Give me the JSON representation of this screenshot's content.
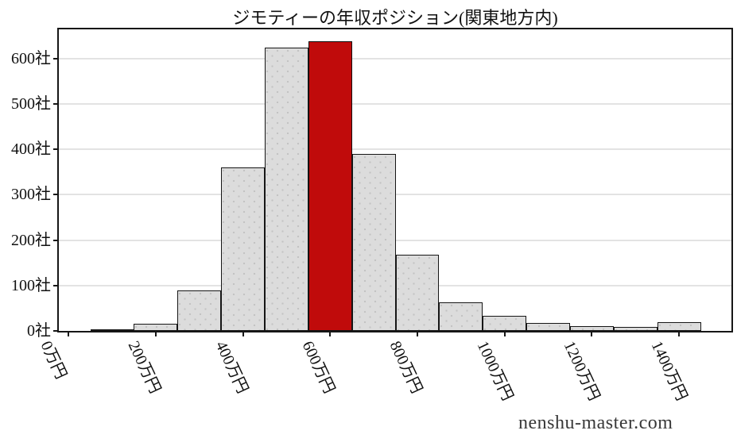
{
  "title": "ジモティーの年収ポジション(関東地方内)",
  "watermark": "nenshu-master.com",
  "chart_data": {
    "type": "bar",
    "subtype": "histogram",
    "title": "ジモティーの年収ポジション(関東地方内)",
    "xlabel": "",
    "ylabel": "",
    "x_unit": "万円",
    "y_unit": "社",
    "categories": [
      "100万円",
      "200万円",
      "300万円",
      "400万円",
      "500万円",
      "600万円",
      "700万円",
      "800万円",
      "900万円",
      "1000万円",
      "1100万円",
      "1200万円",
      "1300万円",
      "1400万円"
    ],
    "bin_centers": [
      100,
      200,
      300,
      400,
      500,
      600,
      700,
      800,
      900,
      1000,
      1100,
      1200,
      1300,
      1400
    ],
    "bin_width": 100,
    "values": [
      3,
      15,
      90,
      360,
      624,
      638,
      390,
      168,
      63,
      33,
      18,
      11,
      9,
      20
    ],
    "highlight_index": 5,
    "highlight_label": "600万円",
    "x_tick_values": [
      0,
      200,
      400,
      600,
      800,
      1000,
      1200,
      1400
    ],
    "x_tick_labels": [
      "0万円",
      "200万円",
      "400万円",
      "600万円",
      "800万円",
      "1000万円",
      "1200万円",
      "1400万円"
    ],
    "y_tick_values": [
      0,
      100,
      200,
      300,
      400,
      500,
      600
    ],
    "y_tick_labels": [
      "0社",
      "100社",
      "200社",
      "300社",
      "400社",
      "500社",
      "600社"
    ],
    "xlim": [
      -22,
      1520
    ],
    "ylim": [
      0,
      664
    ],
    "grid": "horizontal",
    "legend": "none",
    "bar_color": "#dcdcdc",
    "bar_hatch": "dots",
    "highlight_color": "#c00b0b",
    "edge_color": "#161616",
    "grid_color": "#e3e3e3"
  }
}
